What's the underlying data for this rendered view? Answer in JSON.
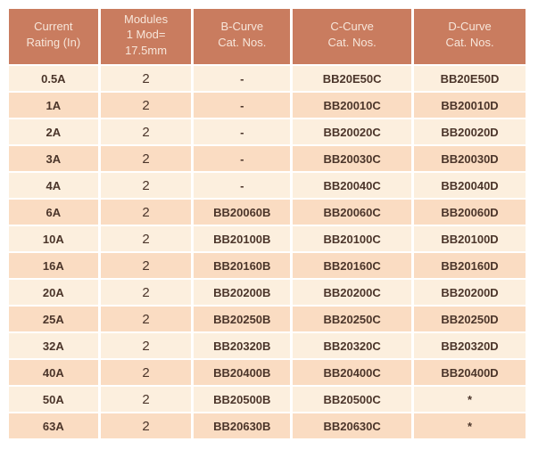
{
  "colors": {
    "header_bg": "#C97C5F",
    "header_text": "#F7E6DA",
    "row_light": "#FCEFDE",
    "row_dark": "#FADCC2",
    "cell_text": "#4B352A",
    "page_bg": "#FFFFFF"
  },
  "table": {
    "columns": [
      {
        "id": "current-rating",
        "title": "Current\nRating (In)"
      },
      {
        "id": "modules",
        "title": "Modules\n1 Mod=\n17.5mm"
      },
      {
        "id": "b-curve-cat",
        "title": "B-Curve\nCat. Nos."
      },
      {
        "id": "c-curve-cat",
        "title": "C-Curve\nCat. Nos."
      },
      {
        "id": "d-curve-cat",
        "title": "D-Curve\nCat. Nos."
      }
    ],
    "rows": [
      [
        "0.5A",
        "2",
        "-",
        "BB20E50C",
        "BB20E50D"
      ],
      [
        "1A",
        "2",
        "-",
        "BB20010C",
        "BB20010D"
      ],
      [
        "2A",
        "2",
        "-",
        "BB20020C",
        "BB20020D"
      ],
      [
        "3A",
        "2",
        "-",
        "BB20030C",
        "BB20030D"
      ],
      [
        "4A",
        "2",
        "-",
        "BB20040C",
        "BB20040D"
      ],
      [
        "6A",
        "2",
        "BB20060B",
        "BB20060C",
        "BB20060D"
      ],
      [
        "10A",
        "2",
        "BB20100B",
        "BB20100C",
        "BB20100D"
      ],
      [
        "16A",
        "2",
        "BB20160B",
        "BB20160C",
        "BB20160D"
      ],
      [
        "20A",
        "2",
        "BB20200B",
        "BB20200C",
        "BB20200D"
      ],
      [
        "25A",
        "2",
        "BB20250B",
        "BB20250C",
        "BB20250D"
      ],
      [
        "32A",
        "2",
        "BB20320B",
        "BB20320C",
        "BB20320D"
      ],
      [
        "40A",
        "2",
        "BB20400B",
        "BB20400C",
        "BB20400D"
      ],
      [
        "50A",
        "2",
        "BB20500B",
        "BB20500C",
        "*"
      ],
      [
        "63A",
        "2",
        "BB20630B",
        "BB20630C",
        "*"
      ]
    ]
  }
}
